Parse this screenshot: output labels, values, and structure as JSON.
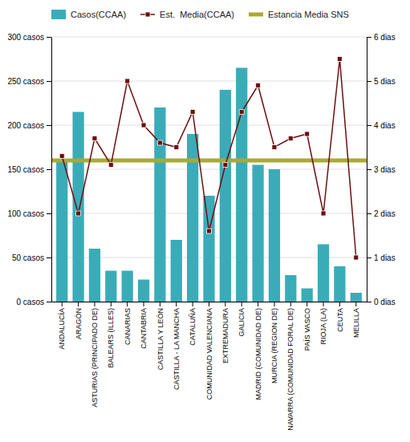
{
  "chart_data": {
    "type": "bar",
    "categories": [
      "ANDALUCÍA",
      "ARAGÓN",
      "ASTURIAS (PRINCIPADO DE)",
      "BALEARS (ILLES)",
      "CANARIAS",
      "CANTABRIA",
      "CASTILLA Y LEÓN",
      "CASTILLA - LA MANCHA",
      "CATALUÑA",
      "COMUNIDAD VALENCIANA",
      "EXTREMADURA",
      "GALICIA",
      "MADRID (COMUNIDAD DE)",
      "MURCIA (REGION DE)",
      "NAVARRA (COMUNIDAD FORAL DE)",
      "PAÍS VASCO",
      "RIOJA (LA)",
      "CEUTA",
      "MELILLA"
    ],
    "series": [
      {
        "name": "Casos(CCAA)",
        "type": "bar",
        "color": "#3AACB8",
        "values": [
          160,
          215,
          60,
          35,
          35,
          25,
          220,
          70,
          190,
          120,
          240,
          265,
          155,
          150,
          30,
          15,
          65,
          40,
          10
        ]
      },
      {
        "name": "Est.  Media(CCAA)",
        "type": "line",
        "color": "#6B1010",
        "marker": "square",
        "axis": "y2",
        "values": [
          3.3,
          2.0,
          3.7,
          3.1,
          5.0,
          4.0,
          3.6,
          3.5,
          4.3,
          1.6,
          3.1,
          4.3,
          4.9,
          3.5,
          3.7,
          3.8,
          2.0,
          5.5,
          1.0
        ]
      },
      {
        "name": "Estancia Media SNS",
        "type": "hline",
        "color": "#AAAA30",
        "axis": "y2",
        "value": 3.2
      }
    ],
    "ylim": [
      0,
      300
    ],
    "yticks": [
      {
        "value": 0,
        "label": "0 casos"
      },
      {
        "value": 50,
        "label": "50 casos"
      },
      {
        "value": 100,
        "label": "100 casos"
      },
      {
        "value": 150,
        "label": "150 casos"
      },
      {
        "value": 200,
        "label": "200 casos"
      },
      {
        "value": 250,
        "label": "250 casos"
      },
      {
        "value": 300,
        "label": "300 casos"
      }
    ],
    "y2lim": [
      0,
      6
    ],
    "y2ticks": [
      {
        "value": 0,
        "label": "0 dias"
      },
      {
        "value": 1,
        "label": "1 dias"
      },
      {
        "value": 2,
        "label": "2 dias"
      },
      {
        "value": 3,
        "label": "3 dias"
      },
      {
        "value": 4,
        "label": "4 dias"
      },
      {
        "value": 5,
        "label": "5 dias"
      },
      {
        "value": 6,
        "label": "6 dias"
      }
    ],
    "grid": true,
    "legend": "top"
  }
}
